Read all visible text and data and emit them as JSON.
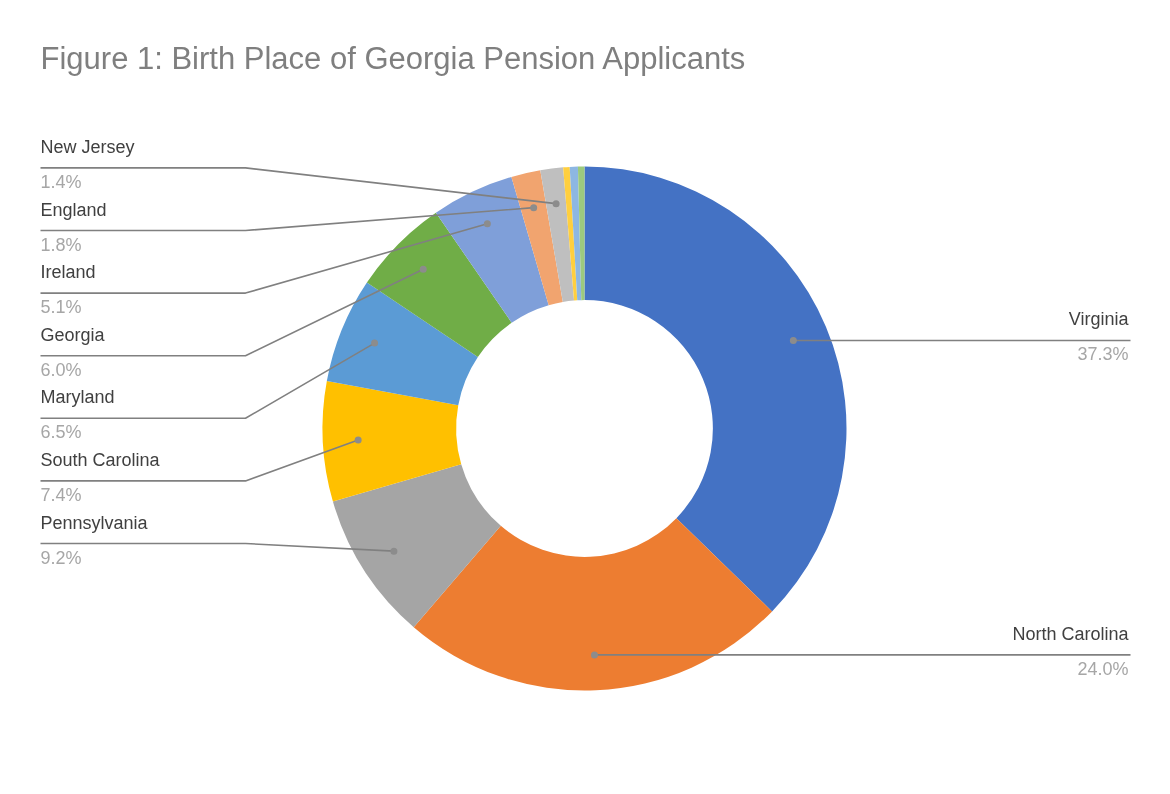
{
  "chart_data": {
    "type": "donut",
    "title": "Figure 1: Birth Place of Georgia Pension Applicants",
    "categories": [
      "Virginia",
      "North Carolina",
      "Pennsylvania",
      "South Carolina",
      "Maryland",
      "Georgia",
      "Ireland",
      "England",
      "New Jersey",
      null,
      null,
      null
    ],
    "values": [
      37.3,
      24.0,
      9.2,
      7.4,
      6.5,
      6.0,
      5.1,
      1.8,
      1.4,
      0.4,
      0.5,
      0.4
    ],
    "colors": [
      "#4472c4",
      "#ed7d31",
      "#a5a5a5",
      "#ffc000",
      "#5b9bd5",
      "#70ad47",
      "#7f9fd9",
      "#f1a46f",
      "#bfbfbf",
      "#ffcf3f",
      "#8db7e2",
      "#9cca7e"
    ],
    "value_labels": [
      "37.3%",
      "24.0%",
      "9.2%",
      "7.4%",
      "6.5%",
      "6.0%",
      "5.1%",
      "1.8%",
      "1.4%",
      null,
      null,
      null
    ]
  }
}
